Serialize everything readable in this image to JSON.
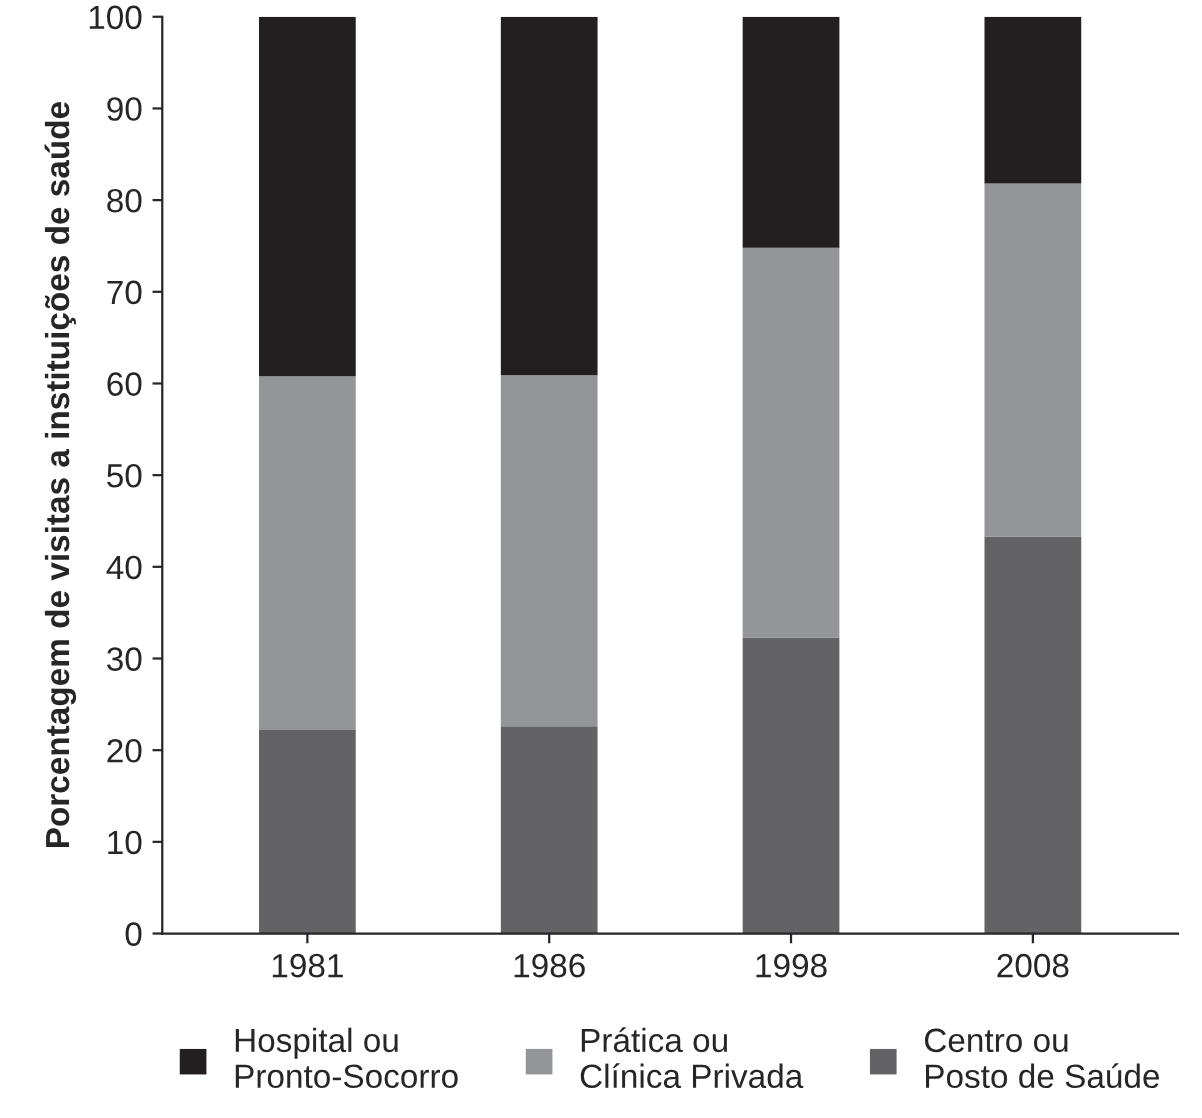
{
  "chart_data": {
    "type": "bar",
    "stacked": true,
    "ylabel": "Porcentagem de visitas a instituições de saúde",
    "categories": [
      "1981",
      "1986",
      "1998",
      "2008"
    ],
    "series": [
      {
        "name": "Centro ou\nPosto de Saúde",
        "color": "#636366",
        "values": [
          22.2,
          22.6,
          32.3,
          43.3
        ]
      },
      {
        "name": "Prática ou\nClínica Privada",
        "color": "#939598",
        "values": [
          38.6,
          38.3,
          42.5,
          38.5
        ]
      },
      {
        "name": "Hospital ou\nPronto-Socorro",
        "color": "#231f20",
        "values": [
          39.2,
          39.1,
          25.2,
          18.2
        ]
      }
    ],
    "ylim": [
      0,
      100
    ],
    "yticks": [
      0,
      10,
      20,
      30,
      40,
      50,
      60,
      70,
      80,
      90,
      100
    ],
    "grid": false,
    "legend": "bottom"
  }
}
